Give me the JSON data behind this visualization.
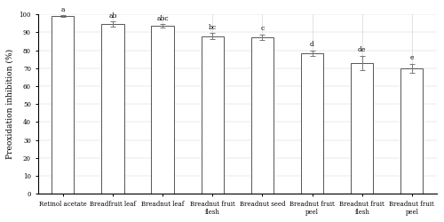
{
  "categories": [
    "Retinol acetate",
    "Breadfruit leaf",
    "Breadnut leaf",
    "Breadnut fruit\nflesh",
    "Breadnut seed",
    "Breadnut fruit\npeel",
    "Breadnut fruit\nflesh",
    "Breadnut fruit\npeel"
  ],
  "values": [
    99.0,
    94.5,
    93.5,
    88.0,
    87.5,
    78.5,
    73.0,
    70.0
  ],
  "errors": [
    0.5,
    1.5,
    1.0,
    1.5,
    1.5,
    1.5,
    4.0,
    2.5
  ],
  "labels": [
    "a",
    "ab",
    "abc",
    "bc",
    "c",
    "d",
    "de",
    "e"
  ],
  "ylabel": "Preoxidation inhibition (%)",
  "ylim": [
    0,
    100
  ],
  "yticks": [
    0,
    10,
    20,
    30,
    40,
    50,
    60,
    70,
    80,
    90,
    100
  ],
  "bar_color": "#ffffff",
  "bar_edgecolor": "#555555",
  "error_color": "#777777",
  "label_fontsize": 5.5,
  "tick_fontsize": 5.0,
  "ylabel_fontsize": 6.5,
  "bar_width": 0.45,
  "figsize": [
    5.0,
    2.5
  ],
  "dpi": 100
}
